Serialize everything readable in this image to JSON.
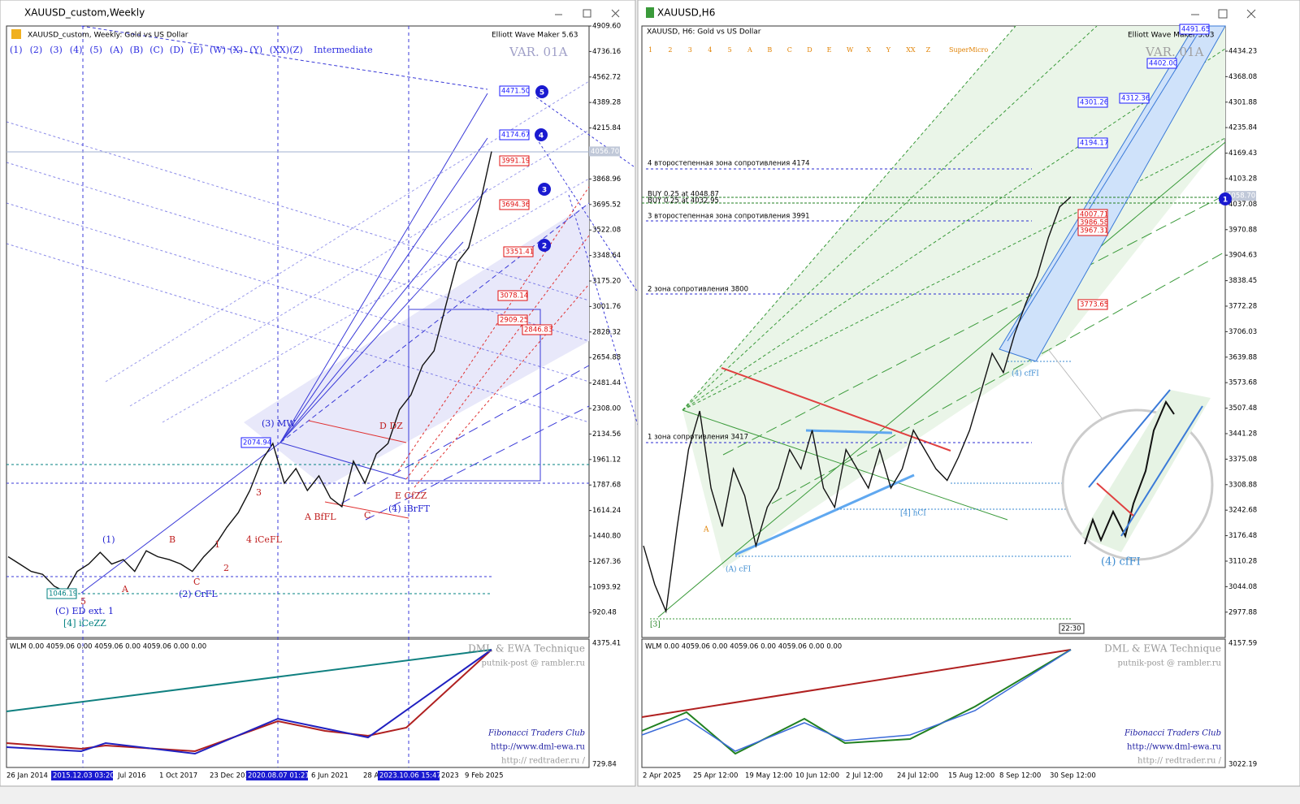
{
  "left": {
    "title": "XAUUSD_custom,Weekly",
    "header": "XAUUSD_custom, Weekly:  Gold vs US Dollar",
    "tool": "Elliott Wave Maker 5.63",
    "buttons": [
      "(1)",
      "(2)",
      "(3)",
      "(4)",
      "(5)",
      "(A)",
      "(B)",
      "(C)",
      "(D)",
      "(E)",
      "(W)",
      "(X)",
      "(Y)",
      "(XX)",
      "(Z)",
      "Intermediate"
    ],
    "variant": "VAR. 01A",
    "price_axis": [
      "4909.60",
      "4736.16",
      "4562.72",
      "4389.28",
      "4215.84",
      "3868.96",
      "3695.52",
      "3522.08",
      "3348.64",
      "3175.20",
      "3001.76",
      "2828.32",
      "2654.88",
      "2481.44",
      "2308.00",
      "2134.56",
      "1961.12",
      "1787.68",
      "1614.24",
      "1440.80",
      "1267.36",
      "1093.92",
      "920.48"
    ],
    "current_price": "4056.70",
    "boxes": [
      {
        "label": "4471.50",
        "color": "#1a1aff"
      },
      {
        "label": "4174.67",
        "color": "#1a1aff"
      },
      {
        "label": "3991.19",
        "color": "#e01010"
      },
      {
        "label": "3694.36",
        "color": "#e01010"
      },
      {
        "label": "3351.41",
        "color": "#e01010"
      },
      {
        "label": "3078.14",
        "color": "#e01010"
      },
      {
        "label": "2909.25",
        "color": "#e01010"
      },
      {
        "label": "2846.83",
        "color": "#e01010"
      },
      {
        "label": "2074.94",
        "color": "#1a1aff"
      },
      {
        "label": "1046.19",
        "color": "#008080"
      }
    ],
    "targets": [
      "5",
      "4",
      "3",
      "2"
    ],
    "annotations": [
      {
        "text": "(3) MW",
        "color": "#2020d0"
      },
      {
        "text": "(1)",
        "color": "#2020d0"
      },
      {
        "text": "(C) ED ext. 1",
        "color": "#2020d0"
      },
      {
        "text": "[4] iCeZZ",
        "color": "#008080"
      },
      {
        "text": "(2) CrFL",
        "color": "#2020d0"
      },
      {
        "text": "4 iCeFL",
        "color": "#c02020"
      },
      {
        "text": "A BfFL",
        "color": "#c02020"
      },
      {
        "text": "C",
        "color": "#c02020"
      },
      {
        "text": "E CfZZ",
        "color": "#c02020"
      },
      {
        "text": "(4) iBrFT",
        "color": "#2020d0"
      },
      {
        "text": "D DZ",
        "color": "#c02020"
      },
      {
        "text": "B",
        "color": "#c02020"
      },
      {
        "text": "A",
        "color": "#c02020"
      },
      {
        "text": "C",
        "color": "#c02020"
      },
      {
        "text": "5",
        "color": "#c02020"
      },
      {
        "text": "3",
        "color": "#c02020"
      },
      {
        "text": "1",
        "color": "#c02020"
      },
      {
        "text": "2",
        "color": "#c02020"
      }
    ],
    "price_trace": [
      1300,
      1250,
      1200,
      1180,
      1100,
      1060,
      1200,
      1250,
      1330,
      1250,
      1280,
      1200,
      1340,
      1300,
      1280,
      1250,
      1200,
      1300,
      1380,
      1500,
      1600,
      1750,
      1950,
      2070,
      1800,
      1900,
      1750,
      1850,
      1700,
      1640,
      1950,
      1800,
      2000,
      2070,
      2300,
      2400,
      2600,
      2700,
      3000,
      3300,
      3400,
      3700,
      4056
    ],
    "indicator": {
      "label": "WLM 0.00 4059.06 0.00 4059.06 0.00 4059.06 0.00 0.00",
      "axis": [
        "4375.41",
        "729.84"
      ]
    },
    "credits": [
      "DML & EWA Technique",
      "putnik-post @ rambler.ru",
      "Fibonacci   Traders   Club",
      "http://www.dml-ewa.ru",
      "http://  redtrader.ru /"
    ],
    "dates": [
      "26 Jan 2014",
      "2015.12.03 03:20",
      "Jul 2016",
      "1 Oct 2017",
      "23 Dec 201",
      "2020.08.07 01:21",
      "6 Jun 2021",
      "28 A",
      "2023.10.06 15:47",
      "2023",
      "9 Feb 2025"
    ]
  },
  "right": {
    "title": "XAUUSD,H6",
    "header": "XAUUSD, H6:  Gold vs US Dollar",
    "tool": "Elliott Wave Maker 5.63",
    "buttons": [
      "1",
      "2",
      "3",
      "4",
      "5",
      "A",
      "B",
      "C",
      "D",
      "E",
      "W",
      "X",
      "Y",
      "XX",
      "Z",
      "SuperMicro"
    ],
    "variant": "VAR. 01A",
    "price_axis": [
      "4434.23",
      "4368.08",
      "4301.88",
      "4235.84",
      "4169.43",
      "4103.28",
      "4037.08",
      "3970.88",
      "3904.63",
      "3838.45",
      "3772.28",
      "3706.03",
      "3639.88",
      "3573.68",
      "3507.48",
      "3441.28",
      "3375.08",
      "3308.88",
      "3242.68",
      "3176.48",
      "3110.28",
      "3044.08",
      "2977.88"
    ],
    "current_price": "4058.70",
    "zones": [
      "4 второстепенная зона сопротивления 4174",
      "BUY 0.25 at 4048.87",
      "BUY 0.25 at 4032.95",
      "3 второстепенная зона сопротивления 3991",
      "2 зона сопротивления 3800",
      "1 зона сопротивления 3417"
    ],
    "boxes": [
      {
        "label": "4491.65",
        "color": "#1a1aff"
      },
      {
        "label": "4402.00",
        "color": "#1a1aff"
      },
      {
        "label": "4312.36",
        "color": "#1a1aff"
      },
      {
        "label": "4301.26",
        "color": "#1a1aff"
      },
      {
        "label": "4194.17",
        "color": "#1a1aff"
      },
      {
        "label": "4007.71",
        "color": "#e01010"
      },
      {
        "label": "3986.58",
        "color": "#e01010"
      },
      {
        "label": "3967.31",
        "color": "#e01010"
      },
      {
        "label": "3773.65",
        "color": "#e01010"
      }
    ],
    "target": "1",
    "annotations": [
      {
        "text": "(4) cfFI",
        "color": "#3a8ad0"
      },
      {
        "text": "(A) cFI",
        "color": "#3a8ad0"
      },
      {
        "text": "[4] hCI",
        "color": "#3a8ad0"
      },
      {
        "text": "[3]",
        "color": "#208020"
      },
      {
        "text": "A",
        "color": "#e08000"
      },
      {
        "text": "(4) cfFI",
        "color": "#3a8ad0"
      }
    ],
    "price_trace": [
      3150,
      3050,
      2980,
      3200,
      3400,
      3500,
      3300,
      3200,
      3350,
      3280,
      3150,
      3250,
      3300,
      3400,
      3350,
      3450,
      3300,
      3250,
      3400,
      3350,
      3300,
      3400,
      3300,
      3350,
      3450,
      3400,
      3350,
      3320,
      3380,
      3450,
      3550,
      3650,
      3600,
      3700,
      3780,
      3850,
      3950,
      4030,
      4056
    ],
    "time_box": "22:30",
    "indicator": {
      "label": "WLM 0.00 4059.06 0.00 4059.06 0.00 4059.06 0.00 0.00",
      "axis": [
        "4157.59",
        "3022.19"
      ]
    },
    "credits": [
      "DML & EWA Technique",
      "putnik-post @ rambler.ru",
      "Fibonacci   Traders   Club",
      "http://www.dml-ewa.ru",
      "http://  redtrader.ru /"
    ],
    "dates": [
      "2 Apr 2025",
      "25 Apr 12:00",
      "19 May 12:00",
      "10 Jun 12:00",
      "2 Jul 12:00",
      "24 Jul 12:00",
      "15 Aug 12:00",
      "8 Sep 12:00",
      "30 Sep 12:00"
    ]
  }
}
